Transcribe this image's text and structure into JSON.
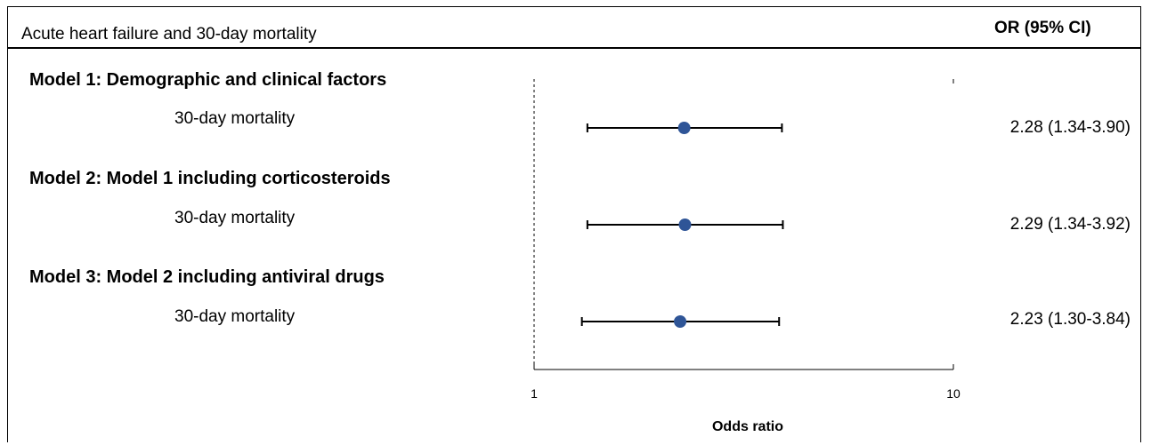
{
  "header": {
    "title": "Acute heart failure and 30-day mortality",
    "effect_column": "OR (95% CI)"
  },
  "colors": {
    "point": "#2f5597",
    "lines": "#000000"
  },
  "chart_data": {
    "type": "forest",
    "x_scale": "log",
    "xlim": [
      1,
      10
    ],
    "xticks": [
      "1",
      "10"
    ],
    "xlabel": "Odds ratio",
    "reference_line": 1,
    "groups": [
      {
        "heading": "Model 1: Demographic and clinical factors",
        "label": "30-day mortality",
        "or": 2.28,
        "ci_low": 1.34,
        "ci_high": 3.9,
        "display": "2.28 (1.34-3.90)"
      },
      {
        "heading": "Model 2: Model 1 including corticosteroids",
        "label": "30-day mortality",
        "or": 2.29,
        "ci_low": 1.34,
        "ci_high": 3.92,
        "display": "2.29 (1.34-3.92)"
      },
      {
        "heading": "Model 3: Model 2 including antiviral drugs",
        "label": "30-day mortality",
        "or": 2.23,
        "ci_low": 1.3,
        "ci_high": 3.84,
        "display": "2.23 (1.30-3.84)"
      }
    ]
  }
}
